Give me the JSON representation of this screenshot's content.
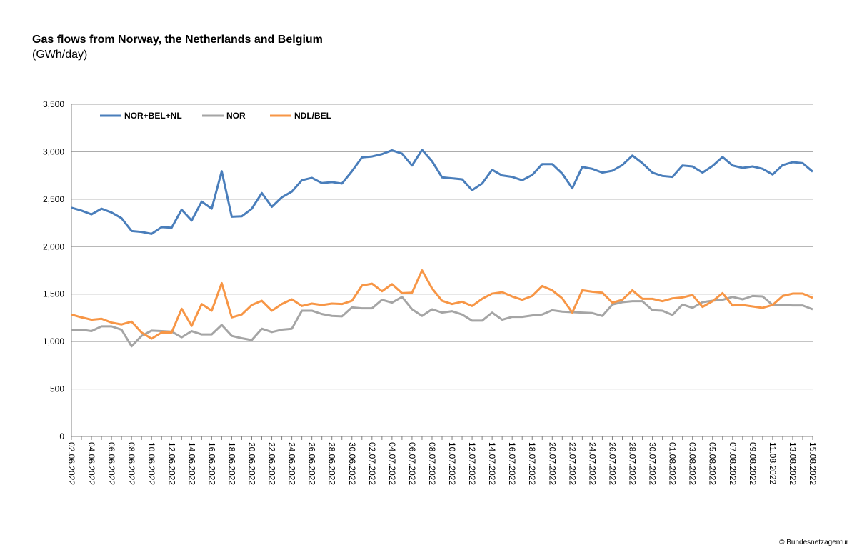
{
  "chart_data": {
    "type": "line",
    "title": "Gas flows from Norway, the Netherlands and Belgium",
    "subtitle": "(GWh/day)",
    "credit": "© Bundesnetzagentur",
    "categories": [
      "02.06.2022",
      null,
      "04.06.2022",
      null,
      "06.06.2022",
      null,
      "08.06.2022",
      null,
      "10.06.2022",
      null,
      "12.06.2022",
      null,
      "14.06.2022",
      null,
      "16.06.2022",
      null,
      "18.06.2022",
      null,
      "20.06.2022",
      null,
      "22.06.2022",
      null,
      "24.06.2022",
      null,
      "26.06.2022",
      null,
      "28.06.2022",
      null,
      "30.06.2022",
      null,
      "02.07.2022",
      null,
      "04.07.2022",
      null,
      "06.07.2022",
      null,
      "08.07.2022",
      null,
      "10.07.2022",
      null,
      "12.07.2022",
      null,
      "14.07.2022",
      null,
      "16.07.2022",
      null,
      "18.07.2022",
      null,
      "20.07.2022",
      null,
      "22.07.2022",
      null,
      "24.07.2022",
      null,
      "26.07.2022",
      null,
      "28.07.2022",
      null,
      "30.07.2022",
      null,
      "01.08.2022",
      null,
      "03.08.2022",
      null,
      "05.08.2022",
      null,
      "07.08.2022",
      null,
      "09.08.2022",
      null,
      "11.08.2022",
      null,
      "13.08.2022",
      null,
      "15.08.2022"
    ],
    "series": [
      {
        "name": "NOR+BEL+NL",
        "color": "#4a7ebb",
        "values": [
          2410,
          2380,
          2340,
          2400,
          2360,
          2300,
          2165,
          2155,
          2135,
          2205,
          2200,
          2390,
          2275,
          2475,
          2400,
          2795,
          2315,
          2320,
          2400,
          2565,
          2420,
          2520,
          2580,
          2700,
          2725,
          2670,
          2680,
          2665,
          2795,
          2940,
          2950,
          2975,
          3015,
          2980,
          2855,
          3020,
          2900,
          2730,
          2720,
          2710,
          2595,
          2665,
          2810,
          2750,
          2735,
          2700,
          2755,
          2870,
          2870,
          2770,
          2615,
          2840,
          2820,
          2780,
          2800,
          2860,
          2960,
          2880,
          2780,
          2745,
          2735,
          2855,
          2845,
          2780,
          2850,
          2945,
          2855,
          2830,
          2845,
          2820,
          2760,
          2860,
          2890,
          2880,
          2790
        ]
      },
      {
        "name": "NOR",
        "color": "#a5a5a5",
        "values": [
          1125,
          1125,
          1110,
          1160,
          1160,
          1125,
          950,
          1060,
          1115,
          1110,
          1105,
          1045,
          1110,
          1075,
          1075,
          1175,
          1060,
          1035,
          1015,
          1135,
          1100,
          1125,
          1135,
          1325,
          1325,
          1290,
          1270,
          1265,
          1360,
          1350,
          1350,
          1440,
          1410,
          1470,
          1340,
          1270,
          1340,
          1305,
          1320,
          1285,
          1220,
          1220,
          1305,
          1230,
          1260,
          1260,
          1275,
          1285,
          1330,
          1315,
          1310,
          1305,
          1300,
          1270,
          1390,
          1415,
          1425,
          1425,
          1330,
          1325,
          1280,
          1390,
          1355,
          1415,
          1430,
          1440,
          1470,
          1445,
          1480,
          1475,
          1385,
          1385,
          1380,
          1380,
          1340
        ]
      },
      {
        "name": "NDL/BEL",
        "color": "#f79646",
        "values": [
          1285,
          1255,
          1230,
          1240,
          1200,
          1180,
          1210,
          1095,
          1030,
          1095,
          1095,
          1345,
          1165,
          1395,
          1325,
          1615,
          1255,
          1285,
          1385,
          1430,
          1325,
          1395,
          1445,
          1375,
          1400,
          1385,
          1400,
          1395,
          1430,
          1590,
          1610,
          1530,
          1605,
          1510,
          1515,
          1750,
          1560,
          1430,
          1395,
          1420,
          1375,
          1450,
          1505,
          1520,
          1475,
          1440,
          1480,
          1585,
          1540,
          1455,
          1305,
          1540,
          1525,
          1515,
          1410,
          1440,
          1540,
          1450,
          1450,
          1425,
          1455,
          1465,
          1490,
          1365,
          1425,
          1510,
          1380,
          1385,
          1370,
          1355,
          1385,
          1480,
          1505,
          1505,
          1460
        ]
      }
    ],
    "ylim": [
      0,
      3500
    ],
    "yticks": [
      0,
      500,
      {
        "value": 1000,
        "label": "1,000"
      },
      {
        "value": 1500,
        "label": "1,500"
      },
      {
        "value": 2000,
        "label": "2,000"
      },
      {
        "value": 2500,
        "label": "2,500"
      },
      {
        "value": 3000,
        "label": "3,000"
      },
      {
        "value": 3500,
        "label": "3,500"
      }
    ],
    "grid": true,
    "legend": "top-left"
  }
}
